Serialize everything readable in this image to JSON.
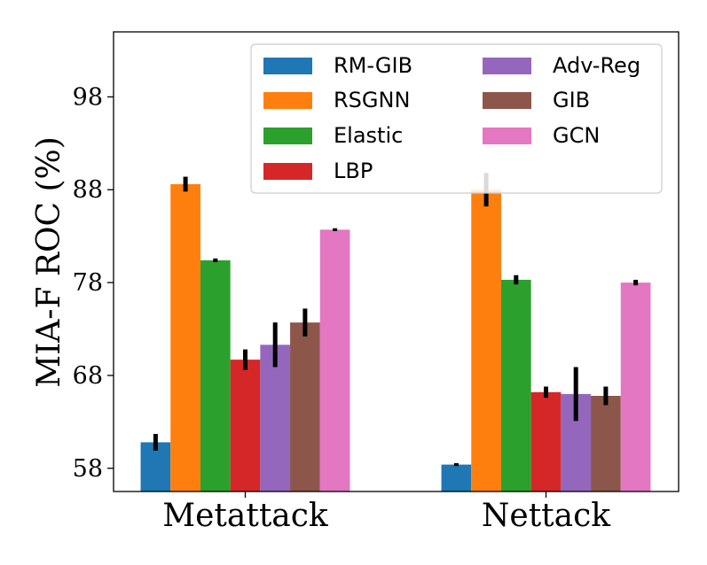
{
  "chart_data": {
    "type": "bar",
    "title": "",
    "xlabel": "",
    "ylabel": "MIA-F ROC (%)",
    "ylim": [
      55.5,
      105
    ],
    "yticks": [
      58,
      68,
      78,
      88,
      98
    ],
    "grid": false,
    "legend_position": "top-right",
    "legend_columns": 2,
    "categories": [
      "Metattack",
      "Nettack"
    ],
    "series": [
      {
        "name": "RM-GIB",
        "color": "#1f77b4",
        "values": [
          60.8,
          58.4
        ],
        "errors": [
          0.9,
          0.15
        ]
      },
      {
        "name": "RSGNN",
        "color": "#ff7f0e",
        "values": [
          88.6,
          88.0
        ],
        "errors": [
          0.8,
          1.8
        ]
      },
      {
        "name": "Elastic",
        "color": "#2ca02c",
        "values": [
          80.4,
          78.3
        ],
        "errors": [
          0.2,
          0.5
        ]
      },
      {
        "name": "LBP",
        "color": "#d62728",
        "values": [
          69.7,
          66.2
        ],
        "errors": [
          1.1,
          0.6
        ]
      },
      {
        "name": "Adv-Reg",
        "color": "#9467bd",
        "values": [
          71.3,
          66.0
        ],
        "errors": [
          2.4,
          2.9
        ]
      },
      {
        "name": "GIB",
        "color": "#8c564b",
        "values": [
          73.7,
          65.8
        ],
        "errors": [
          1.5,
          1.0
        ]
      },
      {
        "name": "GCN",
        "color": "#e377c2",
        "values": [
          83.7,
          78.0
        ],
        "errors": [
          0.15,
          0.3
        ]
      }
    ]
  }
}
